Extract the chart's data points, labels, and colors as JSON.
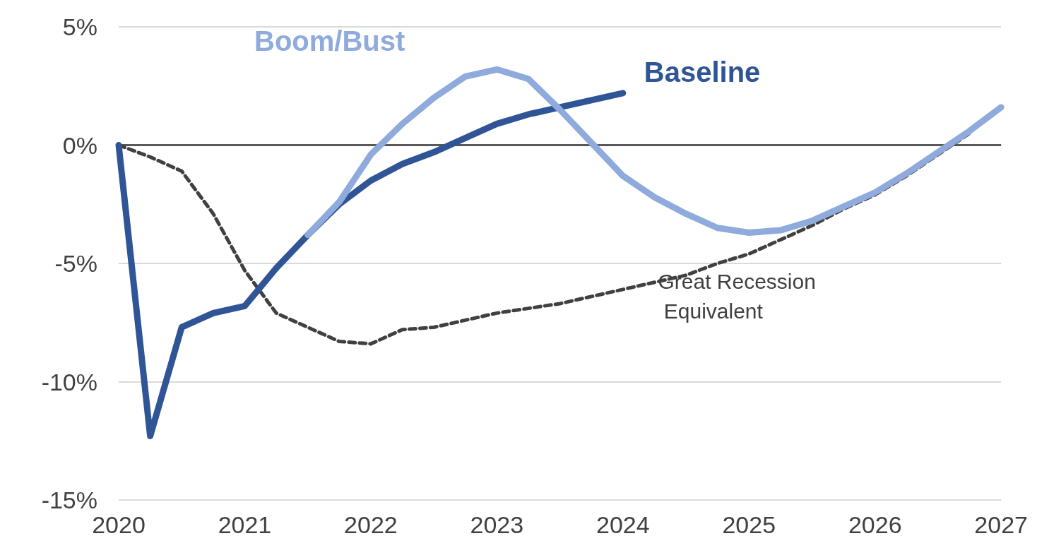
{
  "chart_data": {
    "type": "line",
    "xlim": [
      2020,
      2027
    ],
    "xticks": [
      2020,
      2021,
      2022,
      2023,
      2024,
      2025,
      2026,
      2027
    ],
    "ylim": [
      -15,
      5
    ],
    "yticks": [
      {
        "value": -15,
        "label": "-15%"
      },
      {
        "value": -10,
        "label": "-10%"
      },
      {
        "value": -5,
        "label": "-5%"
      },
      {
        "value": 0,
        "label": "0%"
      },
      {
        "value": 5,
        "label": "5%"
      }
    ],
    "grid": "y",
    "marker": "none",
    "ref_lines": [
      {
        "axis": "y",
        "value": 0,
        "color": "#595959"
      }
    ],
    "series": [
      {
        "name": "Boom/Bust",
        "color": "#8faadc",
        "line_style": "solid",
        "x": [
          2021.5,
          2021.75,
          2022,
          2022.25,
          2022.5,
          2022.75,
          2023,
          2023.25,
          2023.5,
          2023.75,
          2024,
          2024.25,
          2024.5,
          2024.75,
          2025,
          2025.25,
          2025.5,
          2025.75,
          2026,
          2026.25,
          2026.5,
          2026.75,
          2027
        ],
        "values": [
          -3.8,
          -2.4,
          -0.4,
          0.9,
          2.0,
          2.9,
          3.2,
          2.8,
          1.5,
          0.1,
          -1.3,
          -2.2,
          -2.9,
          -3.5,
          -3.7,
          -3.6,
          -3.2,
          -2.6,
          -2.0,
          -1.2,
          -0.3,
          0.6,
          1.6
        ]
      },
      {
        "name": "Baseline",
        "color": "#2f5597",
        "line_style": "solid",
        "x": [
          2020,
          2020.25,
          2020.5,
          2020.75,
          2021,
          2021.25,
          2021.5,
          2021.75,
          2022,
          2022.25,
          2022.5,
          2022.75,
          2023,
          2023.25,
          2023.5,
          2023.75,
          2024
        ],
        "values": [
          0,
          -12.3,
          -7.7,
          -7.1,
          -6.8,
          -5.2,
          -3.8,
          -2.5,
          -1.5,
          -0.8,
          -0.3,
          0.3,
          0.9,
          1.3,
          1.6,
          1.9,
          2.2
        ]
      },
      {
        "name": "Great Recession Equivalent",
        "color": "#404040",
        "line_style": "dashed",
        "x": [
          2020,
          2020.25,
          2020.5,
          2020.75,
          2021,
          2021.25,
          2021.5,
          2021.75,
          2022,
          2022.25,
          2022.5,
          2022.75,
          2023,
          2023.25,
          2023.5,
          2023.75,
          2024,
          2024.25,
          2024.5,
          2024.75,
          2025,
          2025.25,
          2025.5,
          2025.75,
          2026,
          2026.25,
          2026.5,
          2026.75
        ],
        "values": [
          0,
          -0.5,
          -1.1,
          -2.9,
          -5.3,
          -7.1,
          -7.7,
          -8.3,
          -8.4,
          -7.8,
          -7.7,
          -7.4,
          -7.1,
          -6.9,
          -6.7,
          -6.4,
          -6.1,
          -5.8,
          -5.5,
          -5.0,
          -4.6,
          -4.0,
          -3.4,
          -2.7,
          -2.1,
          -1.3,
          -0.4,
          0.5
        ]
      }
    ]
  }
}
